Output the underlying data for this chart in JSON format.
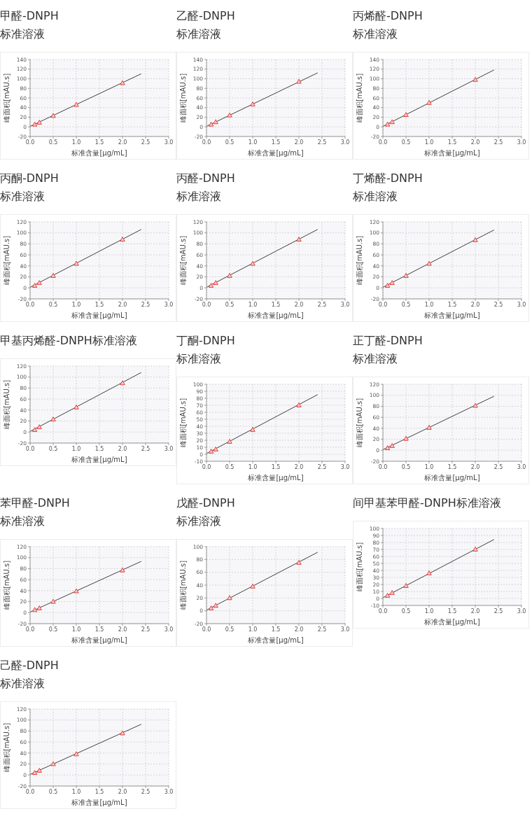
{
  "chart_data": [
    {
      "type": "scatter",
      "title": "甲醛-DNPH\n标准溶液",
      "xlabel": "标准含量[μg/mL]",
      "ylabel": "峰面积[mAU.s]",
      "xlim": [
        0,
        3
      ],
      "xticks": [
        {
          "value": 0,
          "label": "0.0"
        },
        0.5,
        {
          "value": 1,
          "label": "1.0"
        },
        1.5,
        {
          "value": 2,
          "label": "2.0"
        },
        2.5,
        {
          "value": 3,
          "label": "3.0"
        }
      ],
      "ylim": [
        -20,
        140
      ],
      "yticks": [
        -20,
        0,
        20,
        40,
        60,
        80,
        100,
        120,
        140
      ],
      "grid": true,
      "marker": "triangle",
      "series": [
        {
          "type": "scatter",
          "color": "#e8413c",
          "x": [
            0.1,
            0.2,
            0.5,
            1,
            2
          ],
          "values": [
            5,
            9,
            23,
            46,
            91
          ]
        },
        {
          "type": "line",
          "color": "#404040",
          "marker": "none",
          "x": [
            0,
            2.4
          ],
          "values": [
            1,
            110
          ]
        }
      ]
    },
    {
      "type": "scatter",
      "title": "乙醛-DNPH\n标准溶液",
      "xlabel": "标准含量[μg/mL]",
      "ylabel": "峰面积[mAU.s]",
      "xlim": [
        0,
        3
      ],
      "xticks": [
        {
          "value": 0,
          "label": "0.0"
        },
        0.5,
        {
          "value": 1,
          "label": "1.0"
        },
        1.5,
        {
          "value": 2,
          "label": "2.0"
        },
        2.5,
        {
          "value": 3,
          "label": "3.0"
        }
      ],
      "ylim": [
        -20,
        140
      ],
      "yticks": [
        -20,
        0,
        20,
        40,
        60,
        80,
        100,
        120,
        140
      ],
      "grid": true,
      "marker": "triangle",
      "series": [
        {
          "type": "scatter",
          "color": "#e8413c",
          "x": [
            0.1,
            0.2,
            0.5,
            1,
            2
          ],
          "values": [
            5,
            10,
            24,
            47,
            94
          ]
        },
        {
          "type": "line",
          "color": "#404040",
          "marker": "none",
          "x": [
            0,
            2.4
          ],
          "values": [
            1,
            112
          ]
        }
      ]
    },
    {
      "type": "scatter",
      "title": "丙烯醛-DNPH\n标准溶液",
      "xlabel": "标准含量[μg/mL]",
      "ylabel": "峰面积[mAU.s]",
      "xlim": [
        0,
        3
      ],
      "xticks": [
        {
          "value": 0,
          "label": "0.0"
        },
        0.5,
        {
          "value": 1,
          "label": "1.0"
        },
        1.5,
        {
          "value": 2,
          "label": "2.0"
        },
        2.5,
        {
          "value": 3,
          "label": "3.0"
        }
      ],
      "ylim": [
        -20,
        140
      ],
      "yticks": [
        -20,
        0,
        20,
        40,
        60,
        80,
        100,
        120,
        140
      ],
      "grid": true,
      "marker": "triangle",
      "series": [
        {
          "type": "scatter",
          "color": "#e8413c",
          "x": [
            0.1,
            0.2,
            0.5,
            1,
            2
          ],
          "values": [
            5,
            10,
            25,
            50,
            98
          ]
        },
        {
          "type": "line",
          "color": "#404040",
          "marker": "none",
          "x": [
            0,
            2.4
          ],
          "values": [
            1,
            118
          ]
        }
      ]
    },
    {
      "type": "scatter",
      "title": "丙酮-DNPH\n标准溶液",
      "xlabel": "标准含量[μg/mL]",
      "ylabel": "峰面积[mAU.s]",
      "xlim": [
        0,
        3
      ],
      "xticks": [
        {
          "value": 0,
          "label": "0.0"
        },
        0.5,
        {
          "value": 1,
          "label": "1.0"
        },
        1.5,
        {
          "value": 2,
          "label": "2.0"
        },
        2.5,
        {
          "value": 3,
          "label": "3.0"
        }
      ],
      "ylim": [
        -20,
        120
      ],
      "yticks": [
        -20,
        0,
        20,
        40,
        60,
        80,
        100,
        120
      ],
      "grid": true,
      "marker": "triangle",
      "series": [
        {
          "type": "scatter",
          "color": "#e8413c",
          "x": [
            0.1,
            0.2,
            0.5,
            1,
            2
          ],
          "values": [
            4,
            9,
            22,
            44,
            88
          ]
        },
        {
          "type": "line",
          "color": "#404040",
          "marker": "none",
          "x": [
            0,
            2.4
          ],
          "values": [
            1,
            106
          ]
        }
      ]
    },
    {
      "type": "scatter",
      "title": "丙醛-DNPH\n标准溶液",
      "xlabel": "标准含量[μg/mL]",
      "ylabel": "峰面积[mAU.s]",
      "xlim": [
        0,
        3
      ],
      "xticks": [
        {
          "value": 0,
          "label": "0.0"
        },
        0.5,
        {
          "value": 1,
          "label": "1.0"
        },
        1.5,
        {
          "value": 2,
          "label": "2.0"
        },
        2.5,
        {
          "value": 3,
          "label": "3.0"
        }
      ],
      "ylim": [
        -20,
        120
      ],
      "yticks": [
        -20,
        0,
        20,
        40,
        60,
        80,
        100,
        120
      ],
      "grid": true,
      "marker": "triangle",
      "series": [
        {
          "type": "scatter",
          "color": "#e8413c",
          "x": [
            0.1,
            0.2,
            0.5,
            1,
            2
          ],
          "values": [
            4,
            9,
            22,
            44,
            88
          ]
        },
        {
          "type": "line",
          "color": "#404040",
          "marker": "none",
          "x": [
            0,
            2.4
          ],
          "values": [
            1,
            106
          ]
        }
      ]
    },
    {
      "type": "scatter",
      "title": "丁烯醛-DNPH\n标准溶液",
      "xlabel": "标准含量[μg/mL]",
      "ylabel": "峰面积[mAU.s]",
      "xlim": [
        0,
        3
      ],
      "xticks": [
        {
          "value": 0,
          "label": "0.0"
        },
        0.5,
        {
          "value": 1,
          "label": "1.0"
        },
        1.5,
        {
          "value": 2,
          "label": "2.0"
        },
        2.5,
        {
          "value": 3,
          "label": "3.0"
        }
      ],
      "ylim": [
        -20,
        120
      ],
      "yticks": [
        -20,
        0,
        20,
        40,
        60,
        80,
        100,
        120
      ],
      "grid": true,
      "marker": "triangle",
      "series": [
        {
          "type": "scatter",
          "color": "#e8413c",
          "x": [
            0.1,
            0.2,
            0.5,
            1,
            2
          ],
          "values": [
            4,
            9,
            22,
            44,
            87
          ]
        },
        {
          "type": "line",
          "color": "#404040",
          "marker": "none",
          "x": [
            0,
            2.4
          ],
          "values": [
            1,
            105
          ]
        }
      ]
    },
    {
      "type": "scatter",
      "title": "甲基丙烯醛-DNPH标准溶液",
      "xlabel": "标准含量[μg/mL]",
      "ylabel": "峰面积[mAU.s]",
      "xlim": [
        0,
        3
      ],
      "xticks": [
        {
          "value": 0,
          "label": "0.0"
        },
        0.5,
        {
          "value": 1,
          "label": "1.0"
        },
        1.5,
        {
          "value": 2,
          "label": "2.0"
        },
        2.5,
        {
          "value": 3,
          "label": "3.0"
        }
      ],
      "ylim": [
        -20,
        120
      ],
      "yticks": [
        -20,
        0,
        20,
        40,
        60,
        80,
        100,
        120
      ],
      "grid": true,
      "marker": "triangle",
      "series": [
        {
          "type": "scatter",
          "color": "#e8413c",
          "x": [
            0.1,
            0.2,
            0.5,
            1,
            2
          ],
          "values": [
            4,
            9,
            23,
            45,
            89
          ]
        },
        {
          "type": "line",
          "color": "#404040",
          "marker": "none",
          "x": [
            0,
            2.4
          ],
          "values": [
            1,
            108
          ]
        }
      ]
    },
    {
      "type": "scatter",
      "title": "丁酮-DNPH\n标准溶液",
      "xlabel": "标准含量[μg/mL]",
      "ylabel": "峰面积[mAU.s]",
      "xlim": [
        0,
        3
      ],
      "xticks": [
        {
          "value": 0,
          "label": "0.0"
        },
        0.5,
        {
          "value": 1,
          "label": "1.0"
        },
        1.5,
        {
          "value": 2,
          "label": "2.0"
        },
        2.5,
        {
          "value": 3,
          "label": "3.0"
        }
      ],
      "ylim": [
        -10,
        100
      ],
      "yticks": [
        -10,
        0,
        10,
        20,
        30,
        40,
        50,
        60,
        70,
        80,
        90,
        100
      ],
      "grid": true,
      "marker": "triangle",
      "series": [
        {
          "type": "scatter",
          "color": "#e8413c",
          "x": [
            0.1,
            0.2,
            0.5,
            1,
            2
          ],
          "values": [
            4,
            7,
            18,
            35,
            70
          ]
        },
        {
          "type": "line",
          "color": "#404040",
          "marker": "none",
          "x": [
            0,
            2.4
          ],
          "values": [
            1,
            85
          ]
        }
      ]
    },
    {
      "type": "scatter",
      "title": "正丁醛-DNPH\n标准溶液",
      "xlabel": "标准含量[μg/mL]",
      "ylabel": "峰面积[mAU.s]",
      "xlim": [
        0,
        3
      ],
      "xticks": [
        {
          "value": 0,
          "label": "0.0"
        },
        0.5,
        {
          "value": 1,
          "label": "1.0"
        },
        1.5,
        {
          "value": 2,
          "label": "2.0"
        },
        2.5,
        {
          "value": 3,
          "label": "3.0"
        }
      ],
      "ylim": [
        -20,
        120
      ],
      "yticks": [
        -20,
        0,
        20,
        40,
        60,
        80,
        100,
        120
      ],
      "grid": true,
      "marker": "triangle",
      "series": [
        {
          "type": "scatter",
          "color": "#e8413c",
          "x": [
            0.1,
            0.2,
            0.5,
            1,
            2
          ],
          "values": [
            4,
            8,
            21,
            41,
            81
          ]
        },
        {
          "type": "line",
          "color": "#404040",
          "marker": "none",
          "x": [
            0,
            2.4
          ],
          "values": [
            1,
            98
          ]
        }
      ]
    },
    {
      "type": "scatter",
      "title": "苯甲醛-DNPH\n标准溶液",
      "xlabel": "标准含量[μg/mL]",
      "ylabel": "峰面积[mAU.s]",
      "xlim": [
        0,
        3
      ],
      "xticks": [
        {
          "value": 0,
          "label": "0.0"
        },
        0.5,
        {
          "value": 1,
          "label": "1.0"
        },
        1.5,
        {
          "value": 2,
          "label": "2.0"
        },
        2.5,
        {
          "value": 3,
          "label": "3.0"
        }
      ],
      "ylim": [
        -20,
        120
      ],
      "yticks": [
        -20,
        0,
        20,
        40,
        60,
        80,
        100,
        120
      ],
      "grid": true,
      "marker": "triangle",
      "series": [
        {
          "type": "scatter",
          "color": "#e8413c",
          "x": [
            0.1,
            0.2,
            0.5,
            1,
            2
          ],
          "values": [
            5,
            8,
            20,
            39,
            77
          ]
        },
        {
          "type": "line",
          "color": "#404040",
          "marker": "none",
          "x": [
            0,
            2.4
          ],
          "values": [
            1,
            93
          ]
        }
      ]
    },
    {
      "type": "scatter",
      "title": "戊醛-DNPH\n标准溶液",
      "xlabel": "标准含量[μg/mL]",
      "ylabel": "峰面积[mAU.s]",
      "xlim": [
        0,
        3
      ],
      "xticks": [
        {
          "value": 0,
          "label": "0.0"
        },
        0.5,
        {
          "value": 1,
          "label": "1.0"
        },
        1.5,
        {
          "value": 2,
          "label": "2.0"
        },
        2.5,
        {
          "value": 3,
          "label": "3.0"
        }
      ],
      "ylim": [
        -20,
        100
      ],
      "yticks": [
        -20,
        0,
        20,
        40,
        60,
        80,
        100
      ],
      "grid": true,
      "marker": "triangle",
      "series": [
        {
          "type": "scatter",
          "color": "#e8413c",
          "x": [
            0.1,
            0.2,
            0.5,
            1,
            2
          ],
          "values": [
            4,
            8,
            20,
            38,
            75
          ]
        },
        {
          "type": "line",
          "color": "#404040",
          "marker": "none",
          "x": [
            0,
            2.4
          ],
          "values": [
            1,
            91
          ]
        }
      ]
    },
    {
      "type": "scatter",
      "title": "间甲基苯甲醛-DNPH标准溶液",
      "xlabel": "标准含量[μg/mL]",
      "ylabel": "峰面积[mAU.s]",
      "xlim": [
        0,
        3
      ],
      "xticks": [
        {
          "value": 0,
          "label": "0.0"
        },
        0.5,
        {
          "value": 1,
          "label": "1.0"
        },
        1.5,
        {
          "value": 2,
          "label": "2.0"
        },
        2.5,
        {
          "value": 3,
          "label": "3.0"
        }
      ],
      "ylim": [
        -10,
        100
      ],
      "yticks": [
        -10,
        0,
        10,
        20,
        30,
        40,
        50,
        60,
        70,
        80,
        90,
        100
      ],
      "grid": true,
      "marker": "triangle",
      "series": [
        {
          "type": "scatter",
          "color": "#e8413c",
          "x": [
            0.1,
            0.2,
            0.5,
            1,
            2
          ],
          "values": [
            4,
            8,
            18,
            36,
            70
          ]
        },
        {
          "type": "line",
          "color": "#404040",
          "marker": "none",
          "x": [
            0,
            2.4
          ],
          "values": [
            1,
            84
          ]
        }
      ]
    },
    {
      "type": "scatter",
      "title": "己醛-DNPH\n标准溶液",
      "xlabel": "标准含量[μg/mL]",
      "ylabel": "峰面积[mAU.s]",
      "xlim": [
        0,
        3
      ],
      "xticks": [
        {
          "value": 0,
          "label": "0.0"
        },
        0.5,
        {
          "value": 1,
          "label": "1.0"
        },
        1.5,
        {
          "value": 2,
          "label": "2.0"
        },
        2.5,
        {
          "value": 3,
          "label": "3.0"
        }
      ],
      "ylim": [
        -20,
        120
      ],
      "yticks": [
        -20,
        0,
        20,
        40,
        60,
        80,
        100,
        120
      ],
      "grid": true,
      "marker": "triangle",
      "series": [
        {
          "type": "scatter",
          "color": "#e8413c",
          "x": [
            0.1,
            0.2,
            0.5,
            1,
            2
          ],
          "values": [
            4,
            8,
            20,
            38,
            76
          ]
        },
        {
          "type": "line",
          "color": "#404040",
          "marker": "none",
          "x": [
            0,
            2.4
          ],
          "values": [
            1,
            92
          ]
        }
      ]
    }
  ]
}
